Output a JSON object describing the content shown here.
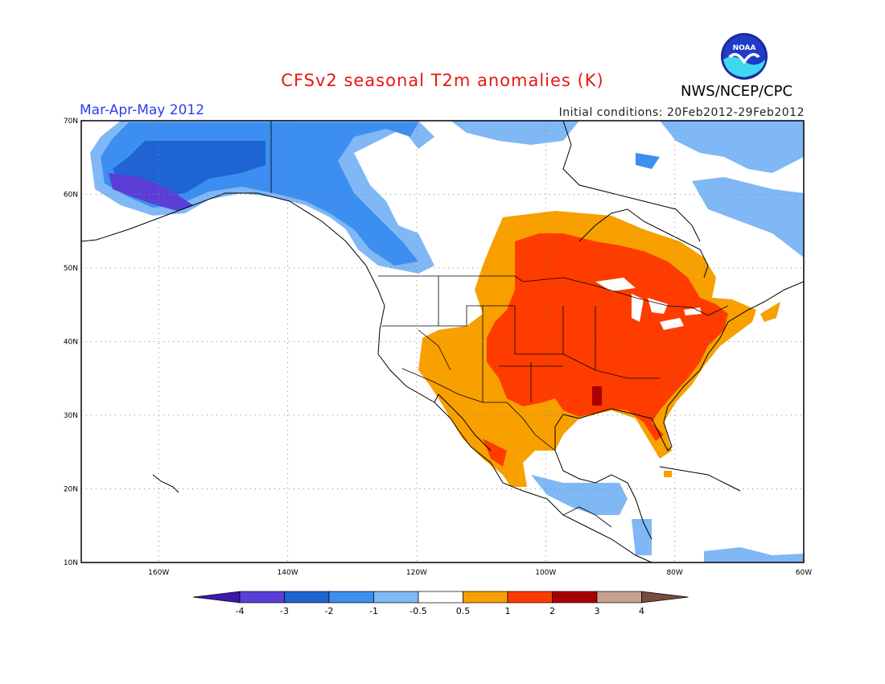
{
  "title": "CFSv2 seasonal T2m anomalies (K)",
  "period": "Mar-Apr-May 2012",
  "initial_conditions": "Initial conditions: 20Feb2012-29Feb2012",
  "agency": "NWS/NCEP/CPC",
  "logo_text": "NOAA",
  "map": {
    "lon_range": [
      -172,
      -60
    ],
    "lat_range": [
      10,
      70
    ],
    "lat_labels": [
      "10N",
      "20N",
      "30N",
      "40N",
      "50N",
      "60N",
      "70N"
    ],
    "lon_labels": [
      "160W",
      "140W",
      "120W",
      "100W",
      "80W",
      "60W"
    ]
  },
  "colorbar": {
    "labels": [
      "-4",
      "-3",
      "-2",
      "-1",
      "-0.5",
      "0.5",
      "1",
      "2",
      "3",
      "4"
    ],
    "colors": [
      "#3c1aa8",
      "#5a3ed6",
      "#1f64d3",
      "#3c8ef0",
      "#7fb8f5",
      "#ffffff",
      "#f7a000",
      "#ff3c00",
      "#a80000",
      "#c8a090",
      "#7a4a3a"
    ]
  },
  "colors": {
    "title": "#e8170f",
    "period": "#2a3ef0",
    "gridline": "#888888"
  }
}
